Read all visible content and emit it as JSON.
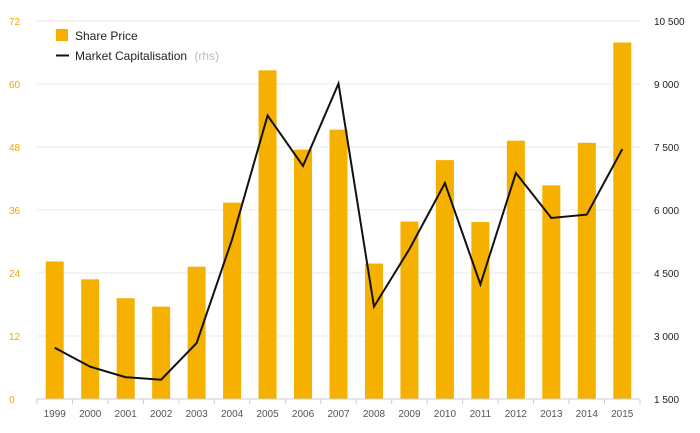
{
  "chart_data": {
    "type": "bar",
    "categories": [
      "1999",
      "2000",
      "2001",
      "2002",
      "2003",
      "2004",
      "2005",
      "2006",
      "2007",
      "2008",
      "2009",
      "2010",
      "2011",
      "2012",
      "2013",
      "2014",
      "2015"
    ],
    "series": [
      {
        "name": "Share Price",
        "type": "bar",
        "axis": "left",
        "color": "#f5b000",
        "values": [
          26.2,
          22.8,
          19.2,
          17.6,
          25.2,
          37.4,
          62.6,
          47.5,
          51.3,
          25.8,
          33.8,
          45.5,
          33.7,
          49.2,
          40.7,
          48.8,
          67.9
        ]
      },
      {
        "name": "Market Capitalisation",
        "name_suffix": "(rhs)",
        "type": "line",
        "axis": "right",
        "color": "#111111",
        "values": [
          2720,
          2270,
          2020,
          1960,
          2830,
          5300,
          8250,
          7050,
          9010,
          3700,
          5070,
          6640,
          4230,
          6880,
          5810,
          5890,
          7450
        ]
      }
    ],
    "y_left": {
      "ylim": [
        0,
        72
      ],
      "ticks": [
        "0",
        "12",
        "24",
        "36",
        "48",
        "60",
        "72"
      ],
      "tick_color": "#f2a900"
    },
    "y_right": {
      "ylim": [
        1500,
        10500
      ],
      "ticks": [
        "1 500",
        "3 000",
        "4 500",
        "6 000",
        "7 500",
        "9 000",
        "10 500"
      ]
    },
    "grid": true,
    "legend_position": "top-left"
  }
}
